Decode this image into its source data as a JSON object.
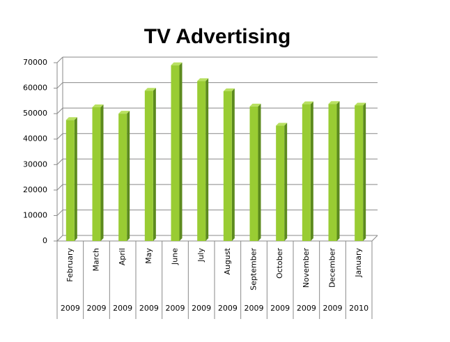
{
  "chart_data": {
    "type": "bar",
    "title": "TV Advertising",
    "categories": [
      "February",
      "March",
      "April",
      "May",
      "June",
      "July",
      "August",
      "September",
      "October",
      "November",
      "December",
      "January"
    ],
    "category_groups": [
      "2009",
      "2009",
      "2009",
      "2009",
      "2009",
      "2009",
      "2009",
      "2009",
      "2009",
      "2009",
      "2009",
      "2010"
    ],
    "values": [
      47500,
      52500,
      50000,
      59000,
      69000,
      62800,
      58800,
      52800,
      45300,
      53700,
      53800,
      53200
    ],
    "color": "#99cc33",
    "ylim": [
      0,
      70000
    ],
    "yticks": [
      0,
      10000,
      20000,
      30000,
      40000,
      50000,
      60000,
      70000
    ],
    "grid": true
  }
}
